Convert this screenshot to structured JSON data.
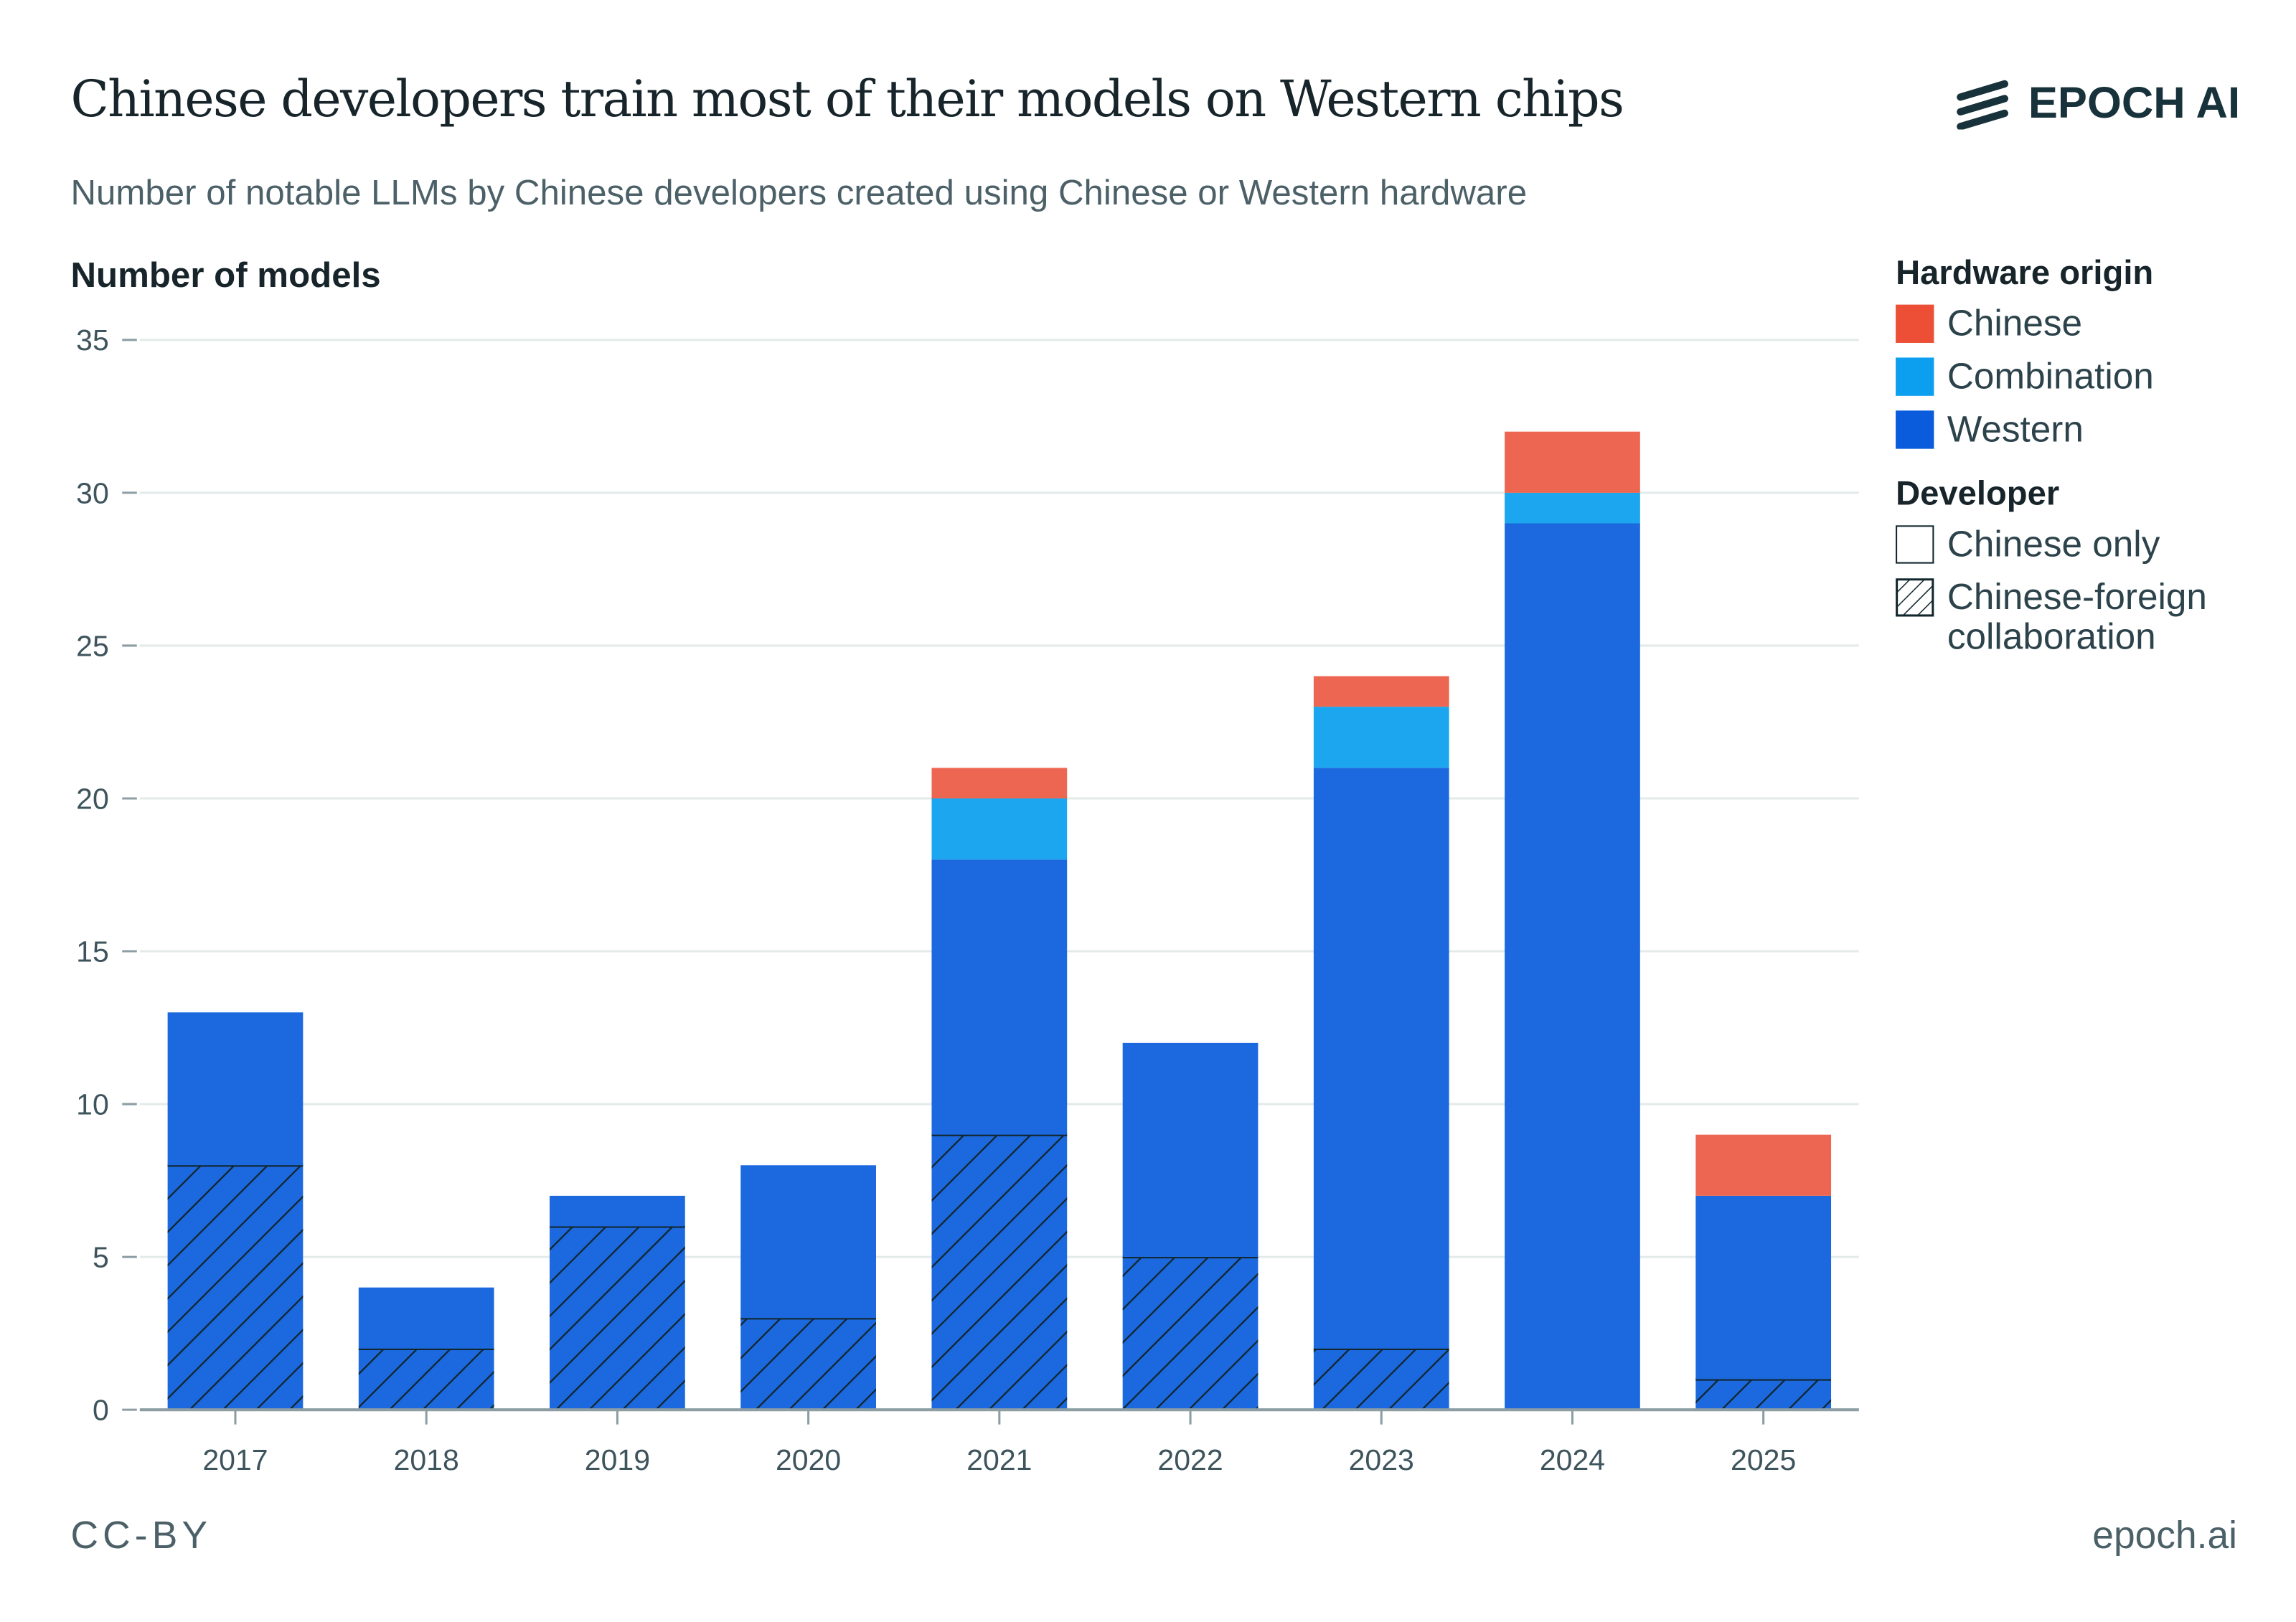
{
  "header": {
    "title": "Chinese developers train most of their models on Western chips",
    "subtitle": "Number of notable LLMs by Chinese developers created using Chinese or Western hardware",
    "logo": "EPOCH AI"
  },
  "legend": {
    "hardware_title": "Hardware origin",
    "hardware": [
      "Chinese",
      "Combination",
      "Western"
    ],
    "developer_title": "Developer",
    "developer": [
      "Chinese only",
      "Chinese-foreign",
      "collaboration"
    ]
  },
  "footer": {
    "license": "CC-BY",
    "site": "epoch.ai"
  },
  "colors": {
    "chinese": "#ec5e48",
    "combination": "#1ca6ef",
    "western": "#1c68de",
    "text": "#17323a"
  },
  "chart_data": {
    "type": "bar",
    "stacked": true,
    "title": "Chinese developers train most of their models on Western chips",
    "ylabel": "Number of models",
    "xlabel": "",
    "ylim": [
      0,
      35
    ],
    "yticks": [
      0,
      5,
      10,
      15,
      20,
      25,
      30,
      35
    ],
    "grid": true,
    "legend_placement": "right",
    "categories": [
      "2017",
      "2018",
      "2019",
      "2020",
      "2021",
      "2022",
      "2023",
      "2024",
      "2025"
    ],
    "series": [
      {
        "name": "Western, Chinese-foreign collaboration",
        "values": [
          8,
          2,
          6,
          3,
          9,
          5,
          2,
          0,
          1
        ]
      },
      {
        "name": "Western, Chinese only",
        "values": [
          5,
          2,
          1,
          5,
          9,
          7,
          19,
          29,
          6
        ]
      },
      {
        "name": "Combination",
        "values": [
          0,
          0,
          0,
          0,
          2,
          0,
          2,
          1,
          0
        ]
      },
      {
        "name": "Chinese",
        "values": [
          0,
          0,
          0,
          0,
          1,
          0,
          1,
          2,
          2
        ]
      }
    ]
  }
}
